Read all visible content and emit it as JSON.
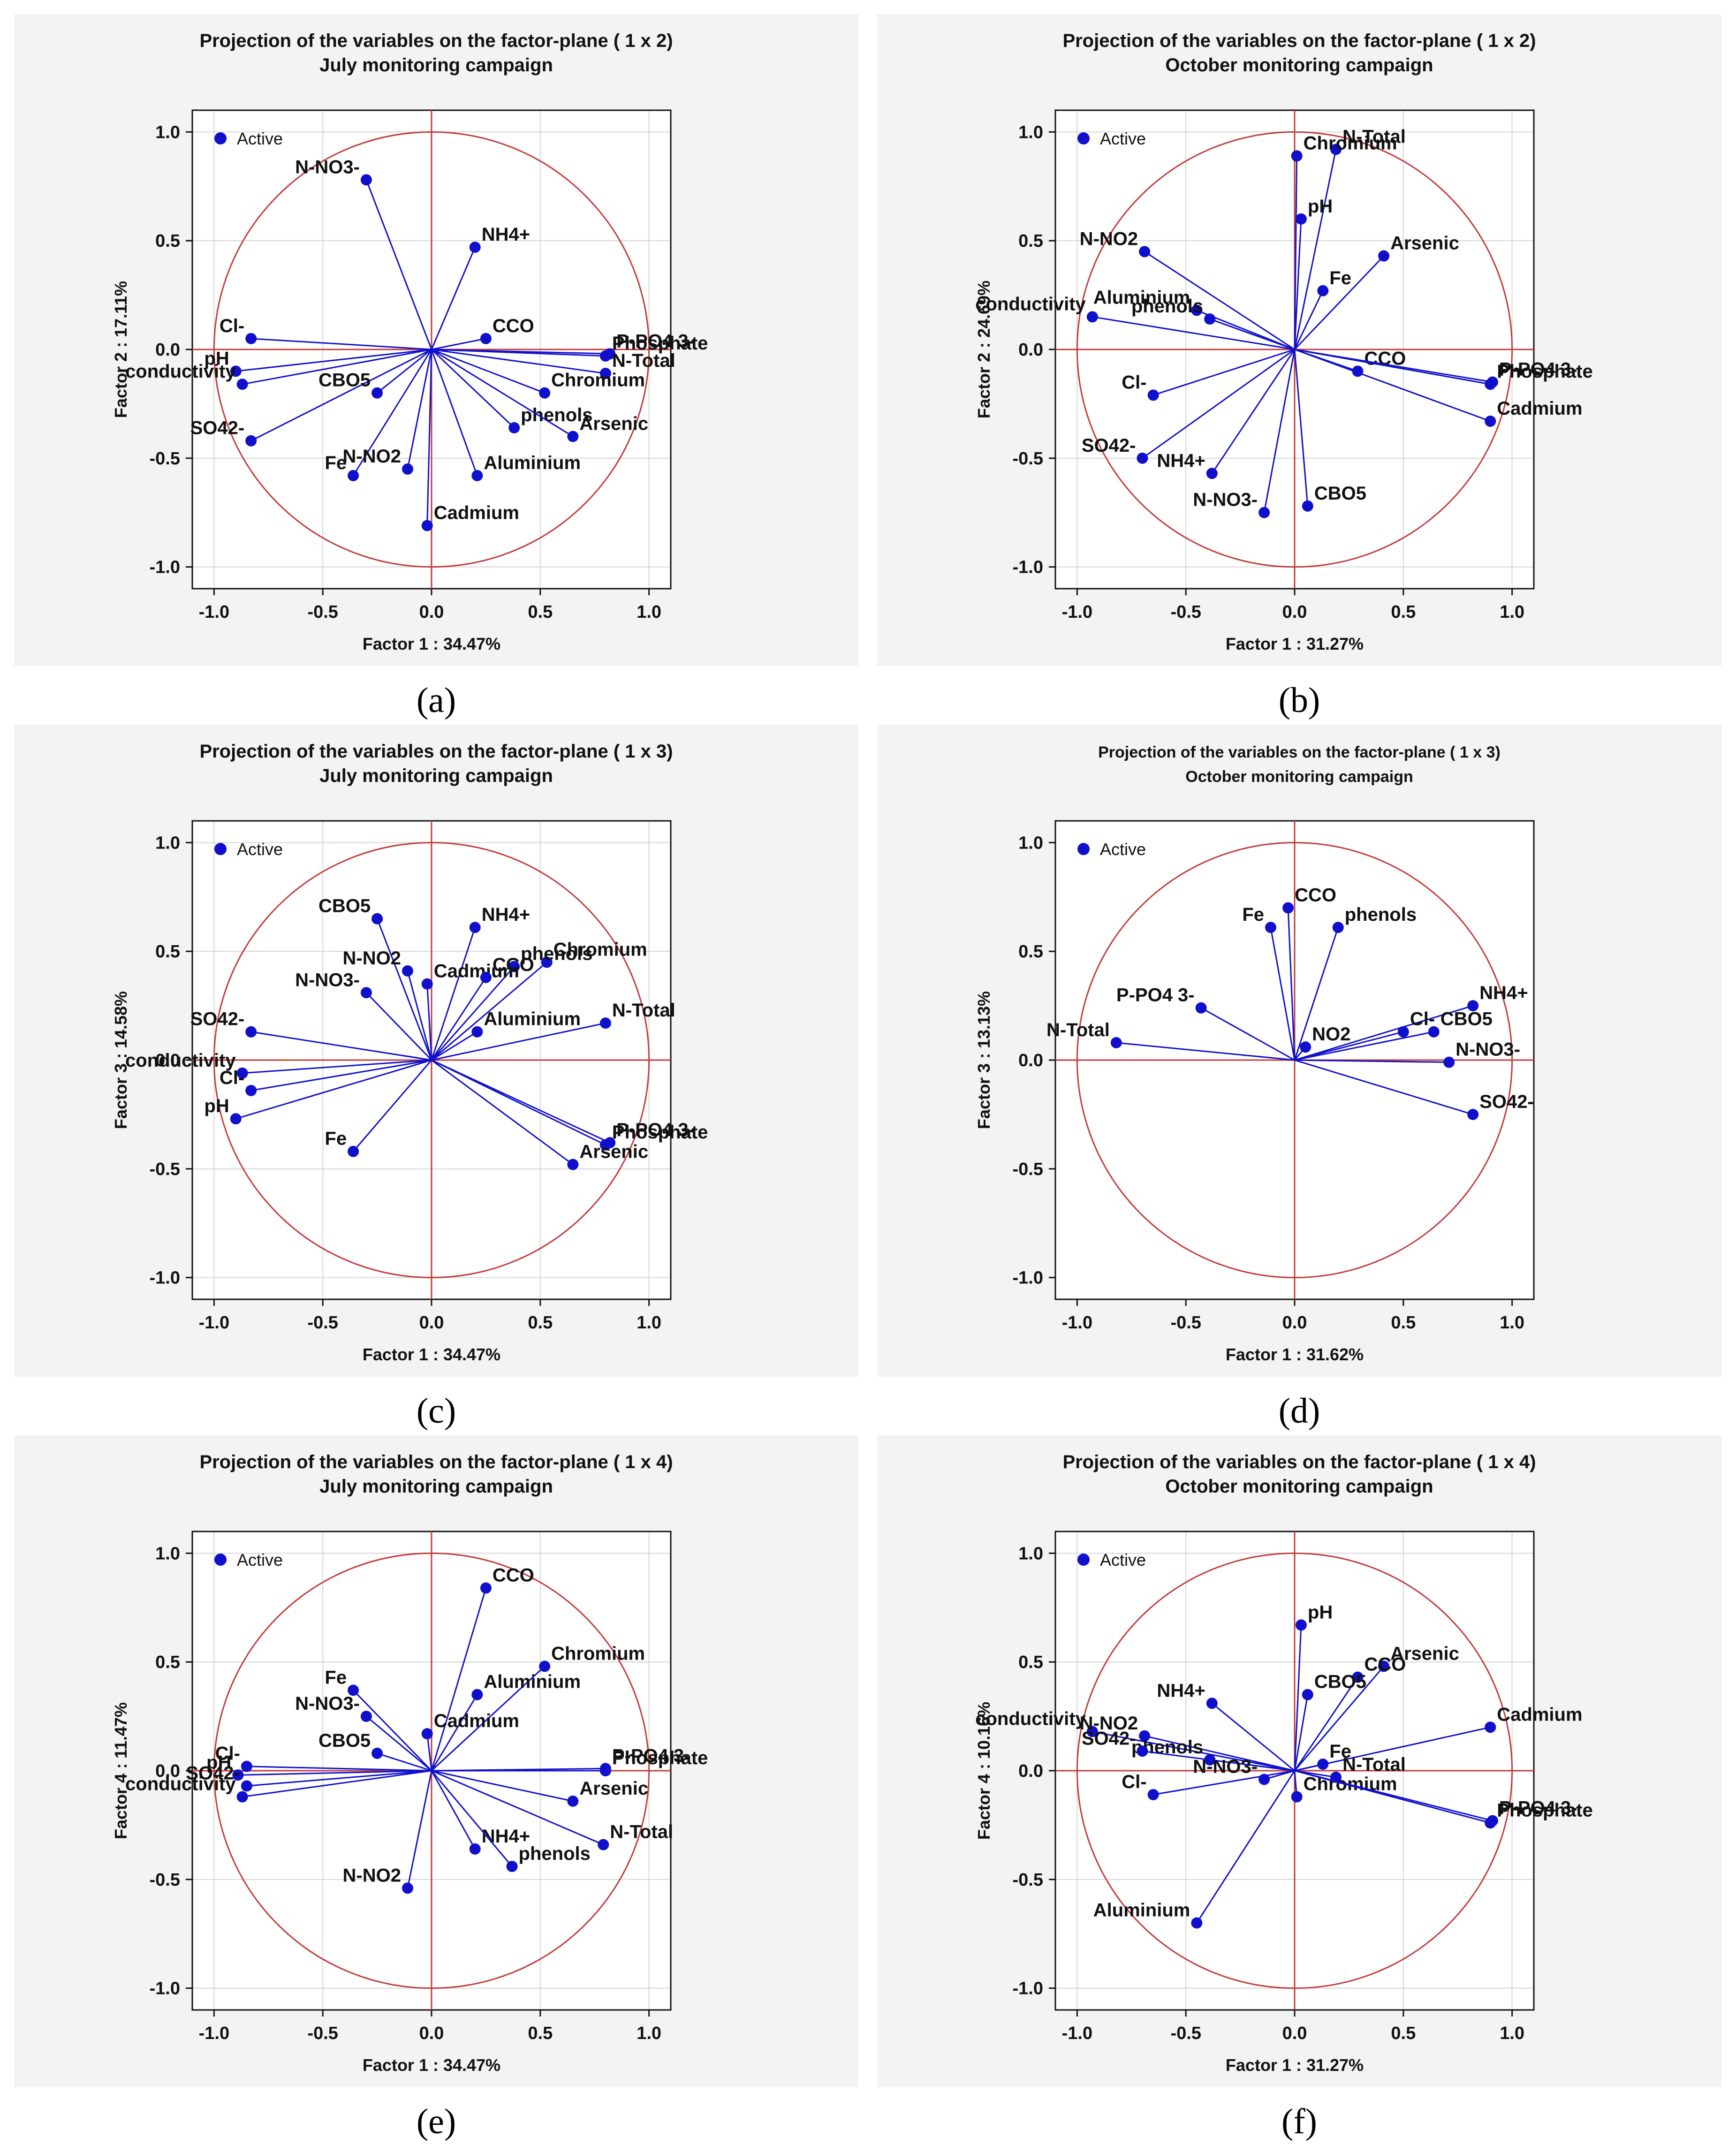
{
  "colors": {
    "vector": "#1010cc",
    "circle": "#c43a3a",
    "axis": "#c43a3a",
    "grid": "#d6d6d6"
  },
  "legend_label": "Active",
  "chart_data": [
    {
      "id": "a",
      "caption": "(a)",
      "type": "scatter",
      "title": "Projection of the variables on the factor-plane (  1 x   2)",
      "subtitle": "July monitoring campaign",
      "xlabel": "Factor 1 : 34.47%",
      "ylabel": "Factor 2 : 17.11%",
      "xlim": [
        -1.1,
        1.1
      ],
      "ylim": [
        -1.1,
        1.1
      ],
      "xticks": [
        "-1.0",
        "-0.5",
        "0.0",
        "0.5",
        "1.0"
      ],
      "yticks": [
        "1.0",
        "0.5",
        "0.0",
        "-0.5",
        "-1.0"
      ],
      "grid": true,
      "legend": "top-left",
      "points": [
        {
          "label": "N-NO3-",
          "x": -0.3,
          "y": 0.78
        },
        {
          "label": "NH4+",
          "x": 0.2,
          "y": 0.47
        },
        {
          "label": "Cl-",
          "x": -0.83,
          "y": 0.05
        },
        {
          "label": "pH",
          "x": -0.9,
          "y": -0.1
        },
        {
          "label": "conductivity",
          "x": -0.87,
          "y": -0.16
        },
        {
          "label": "SO42-",
          "x": -0.83,
          "y": -0.42
        },
        {
          "label": "CBO5",
          "x": -0.25,
          "y": -0.2
        },
        {
          "label": "CCO",
          "x": 0.25,
          "y": 0.05
        },
        {
          "label": "P-PO4 3-",
          "x": 0.82,
          "y": -0.02
        },
        {
          "label": "Phosphate",
          "x": 0.8,
          "y": -0.03
        },
        {
          "label": "N-Total",
          "x": 0.8,
          "y": -0.11
        },
        {
          "label": "Chromium",
          "x": 0.52,
          "y": -0.2
        },
        {
          "label": "phenols",
          "x": 0.38,
          "y": -0.36
        },
        {
          "label": "Arsenic",
          "x": 0.65,
          "y": -0.4
        },
        {
          "label": "Fe",
          "x": -0.36,
          "y": -0.58
        },
        {
          "label": "N-NO2",
          "x": -0.11,
          "y": -0.55
        },
        {
          "label": "Aluminium",
          "x": 0.21,
          "y": -0.58
        },
        {
          "label": "Cadmium",
          "x": -0.02,
          "y": -0.81
        }
      ]
    },
    {
      "id": "b",
      "caption": "(b)",
      "type": "scatter",
      "title": "Projection of the variables on the factor-plane (  1 x   2)",
      "subtitle": "October monitoring campaign",
      "xlabel": "Factor 1 : 31.27%",
      "ylabel": "Factor 2 : 24.69%",
      "xlim": [
        -1.1,
        1.1
      ],
      "ylim": [
        -1.1,
        1.1
      ],
      "xticks": [
        "-1.0",
        "-0.5",
        "0.0",
        "0.5",
        "1.0"
      ],
      "yticks": [
        "1.0",
        "0.5",
        "0.0",
        "-0.5",
        "-1.0"
      ],
      "grid": true,
      "legend": "top-left",
      "points": [
        {
          "label": "N-Total",
          "x": 0.19,
          "y": 0.92
        },
        {
          "label": "Chromium",
          "x": 0.01,
          "y": 0.89
        },
        {
          "label": "pH",
          "x": 0.03,
          "y": 0.6
        },
        {
          "label": "Arsenic",
          "x": 0.41,
          "y": 0.43
        },
        {
          "label": "Fe",
          "x": 0.13,
          "y": 0.27
        },
        {
          "label": "N-NO2",
          "x": -0.69,
          "y": 0.45
        },
        {
          "label": "Aluminium",
          "x": -0.45,
          "y": 0.18
        },
        {
          "label": "phenols",
          "x": -0.39,
          "y": 0.14
        },
        {
          "label": "conductivity",
          "x": -0.93,
          "y": 0.15
        },
        {
          "label": "CCO",
          "x": 0.29,
          "y": -0.1
        },
        {
          "label": "P-PO4 3-",
          "x": 0.91,
          "y": -0.15
        },
        {
          "label": "Phosphate",
          "x": 0.9,
          "y": -0.16
        },
        {
          "label": "Cadmium",
          "x": 0.9,
          "y": -0.33
        },
        {
          "label": "Cl-",
          "x": -0.65,
          "y": -0.21
        },
        {
          "label": "SO42-",
          "x": -0.7,
          "y": -0.5
        },
        {
          "label": "NH4+",
          "x": -0.38,
          "y": -0.57
        },
        {
          "label": "N-NO3-",
          "x": -0.14,
          "y": -0.75
        },
        {
          "label": "CBO5",
          "x": 0.06,
          "y": -0.72
        }
      ]
    },
    {
      "id": "c",
      "caption": "(c)",
      "type": "scatter",
      "title": "Projection of the variables on the factor-plane (  1 x   3)",
      "subtitle": "July monitoring campaign",
      "xlabel": "Factor 1 : 34.47%",
      "ylabel": "Factor 3 : 14.58%",
      "xlim": [
        -1.1,
        1.1
      ],
      "ylim": [
        -1.1,
        1.1
      ],
      "xticks": [
        "-1.0",
        "-0.5",
        "0.0",
        "0.5",
        "1.0"
      ],
      "yticks": [
        "1.0",
        "0.5",
        "0.0",
        "-0.5",
        "-1.0"
      ],
      "grid": true,
      "legend": "top-left",
      "points": [
        {
          "label": "CBO5",
          "x": -0.25,
          "y": 0.65
        },
        {
          "label": "NH4+",
          "x": 0.2,
          "y": 0.61
        },
        {
          "label": "N-NO2",
          "x": -0.11,
          "y": 0.41
        },
        {
          "label": "Chromium",
          "x": 0.53,
          "y": 0.45
        },
        {
          "label": "phenols",
          "x": 0.38,
          "y": 0.43
        },
        {
          "label": "Cadmium",
          "x": -0.02,
          "y": 0.35
        },
        {
          "label": "CCO",
          "x": 0.25,
          "y": 0.38
        },
        {
          "label": "N-NO3-",
          "x": -0.3,
          "y": 0.31
        },
        {
          "label": "Aluminium",
          "x": 0.21,
          "y": 0.13
        },
        {
          "label": "N-Total",
          "x": 0.8,
          "y": 0.17
        },
        {
          "label": "SO42-",
          "x": -0.83,
          "y": 0.13
        },
        {
          "label": "conductivity",
          "x": -0.87,
          "y": -0.06
        },
        {
          "label": "Cl-",
          "x": -0.83,
          "y": -0.14
        },
        {
          "label": "pH",
          "x": -0.9,
          "y": -0.27
        },
        {
          "label": "Fe",
          "x": -0.36,
          "y": -0.42
        },
        {
          "label": "P-PO4 3-",
          "x": 0.82,
          "y": -0.38
        },
        {
          "label": "Phosphate",
          "x": 0.8,
          "y": -0.39
        },
        {
          "label": "Arsenic",
          "x": 0.65,
          "y": -0.48
        }
      ]
    },
    {
      "id": "d",
      "caption": "(d)",
      "type": "scatter",
      "title": "Projection of the variables on the factor-plane (  1 x   3)",
      "subtitle": "October monitoring campaign",
      "xlabel": "Factor 1 : 31.62%",
      "ylabel": "Factor 3 : 13.13%",
      "xlim": [
        -1.1,
        1.1
      ],
      "ylim": [
        -1.1,
        1.1
      ],
      "xticks": [
        "-1.0",
        "-0.5",
        "0.0",
        "0.5",
        "1.0"
      ],
      "yticks": [
        "1.0",
        "0.5",
        "0.0",
        "-0.5",
        "-1.0"
      ],
      "grid": false,
      "legend": "top-left",
      "points": [
        {
          "label": "CCO",
          "x": -0.03,
          "y": 0.7
        },
        {
          "label": "Fe",
          "x": -0.11,
          "y": 0.61
        },
        {
          "label": "phenols",
          "x": 0.2,
          "y": 0.61
        },
        {
          "label": "P-PO4 3-",
          "x": -0.43,
          "y": 0.24
        },
        {
          "label": "N-Total",
          "x": -0.82,
          "y": 0.08
        },
        {
          "label": "NO2",
          "x": 0.05,
          "y": 0.06
        },
        {
          "label": "NH4+",
          "x": 0.82,
          "y": 0.25
        },
        {
          "label": "Cl-",
          "x": 0.5,
          "y": 0.13
        },
        {
          "label": "CBO5",
          "x": 0.64,
          "y": 0.13
        },
        {
          "label": "N-NO3-",
          "x": 0.71,
          "y": -0.01
        },
        {
          "label": "SO42-",
          "x": 0.82,
          "y": -0.25
        }
      ]
    },
    {
      "id": "e",
      "caption": "(e)",
      "type": "scatter",
      "title": "Projection of the variables on the factor-plane (  1 x   4)",
      "subtitle": "July monitoring campaign",
      "xlabel": "Factor 1 : 34.47%",
      "ylabel": "Factor 4 : 11.47%",
      "xlim": [
        -1.1,
        1.1
      ],
      "ylim": [
        -1.1,
        1.1
      ],
      "xticks": [
        "-1.0",
        "-0.5",
        "0.0",
        "0.5",
        "1.0"
      ],
      "yticks": [
        "1.0",
        "0.5",
        "0.0",
        "-0.5",
        "-1.0"
      ],
      "grid": true,
      "legend": "top-left",
      "points": [
        {
          "label": "CCO",
          "x": 0.25,
          "y": 0.84
        },
        {
          "label": "Chromium",
          "x": 0.52,
          "y": 0.48
        },
        {
          "label": "Aluminium",
          "x": 0.21,
          "y": 0.35
        },
        {
          "label": "Fe",
          "x": -0.36,
          "y": 0.37
        },
        {
          "label": "N-NO3-",
          "x": -0.3,
          "y": 0.25
        },
        {
          "label": "Cadmium",
          "x": -0.02,
          "y": 0.17
        },
        {
          "label": "CBO5",
          "x": -0.25,
          "y": 0.08
        },
        {
          "label": "Cl-",
          "x": -0.85,
          "y": 0.02
        },
        {
          "label": "pH",
          "x": -0.89,
          "y": -0.02
        },
        {
          "label": "SO42-",
          "x": -0.85,
          "y": -0.07
        },
        {
          "label": "conductivity",
          "x": -0.87,
          "y": -0.12
        },
        {
          "label": "P-PO4 3-",
          "x": 0.8,
          "y": 0.01
        },
        {
          "label": "Phosphate",
          "x": 0.8,
          "y": 0.0
        },
        {
          "label": "Arsenic",
          "x": 0.65,
          "y": -0.14
        },
        {
          "label": "N-Total",
          "x": 0.79,
          "y": -0.34
        },
        {
          "label": "NH4+",
          "x": 0.2,
          "y": -0.36
        },
        {
          "label": "phenols",
          "x": 0.37,
          "y": -0.44
        },
        {
          "label": "N-NO2",
          "x": -0.11,
          "y": -0.54
        }
      ]
    },
    {
      "id": "f",
      "caption": "(f)",
      "type": "scatter",
      "title": "Projection of the variables on the factor-plane (  1 x   4)",
      "subtitle": "October monitoring campaign",
      "xlabel": "Factor 1 : 31.27%",
      "ylabel": "Factor 4 : 10.16%",
      "xlim": [
        -1.1,
        1.1
      ],
      "ylim": [
        -1.1,
        1.1
      ],
      "xticks": [
        "-1.0",
        "-0.5",
        "0.0",
        "0.5",
        "1.0"
      ],
      "yticks": [
        "1.0",
        "0.5",
        "0.0",
        "-0.5",
        "-1.0"
      ],
      "grid": true,
      "legend": "top-left",
      "points": [
        {
          "label": "pH",
          "x": 0.03,
          "y": 0.67
        },
        {
          "label": "Arsenic",
          "x": 0.41,
          "y": 0.48
        },
        {
          "label": "CCO",
          "x": 0.29,
          "y": 0.43
        },
        {
          "label": "CBO5",
          "x": 0.06,
          "y": 0.35
        },
        {
          "label": "conductivity",
          "x": -0.93,
          "y": 0.18
        },
        {
          "label": "NH4+",
          "x": -0.38,
          "y": 0.31
        },
        {
          "label": "N-NO2",
          "x": -0.69,
          "y": 0.16
        },
        {
          "label": "phenols",
          "x": -0.39,
          "y": 0.05
        },
        {
          "label": "SO42-",
          "x": -0.7,
          "y": 0.09
        },
        {
          "label": "Fe",
          "x": 0.13,
          "y": 0.03
        },
        {
          "label": "Cadmium",
          "x": 0.9,
          "y": 0.2
        },
        {
          "label": "Cl-",
          "x": -0.65,
          "y": -0.11
        },
        {
          "label": "N-NO3-",
          "x": -0.14,
          "y": -0.04
        },
        {
          "label": "N-Total",
          "x": 0.19,
          "y": -0.03
        },
        {
          "label": "Chromium",
          "x": 0.01,
          "y": -0.12
        },
        {
          "label": "P-PO4 3-",
          "x": 0.91,
          "y": -0.23
        },
        {
          "label": "Phosphate",
          "x": 0.9,
          "y": -0.24
        },
        {
          "label": "Aluminium",
          "x": -0.45,
          "y": -0.7
        }
      ]
    }
  ]
}
